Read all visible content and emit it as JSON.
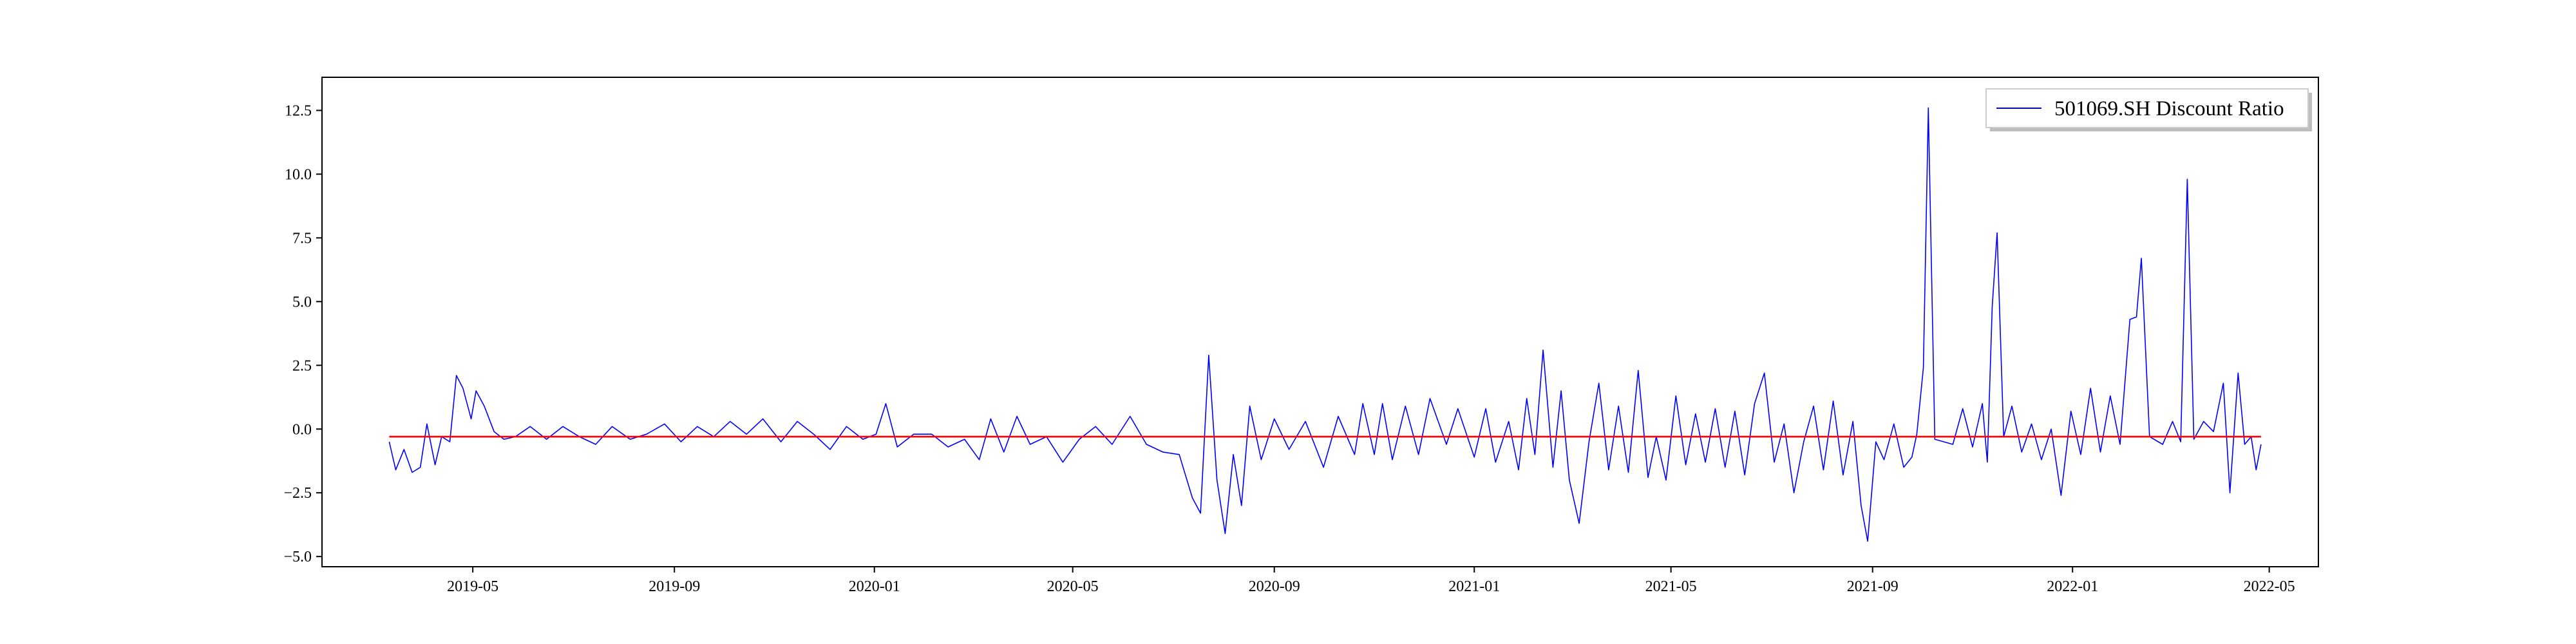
{
  "chart_data": {
    "type": "line",
    "title": "",
    "xlabel": "",
    "ylabel": "",
    "xlim": [
      "2019-01-29",
      "2022-05-31"
    ],
    "ylim": [
      -5.4,
      13.8
    ],
    "x_ticks": [
      "2019-05",
      "2019-09",
      "2020-01",
      "2020-05",
      "2020-09",
      "2021-01",
      "2021-05",
      "2021-09",
      "2022-01",
      "2022-05"
    ],
    "y_ticks": [
      "12.5",
      "10.0",
      "7.5",
      "5.0",
      "2.5",
      "0.0",
      "−2.5",
      "−5.0"
    ],
    "legend": {
      "position": "top-right",
      "entries": [
        "501069.SH Discount Ratio"
      ]
    },
    "grid": false,
    "series": [
      {
        "name": "501069.SH Discount Ratio",
        "color": "#0000ff",
        "points": [
          [
            "2019-03-11",
            -0.5
          ],
          [
            "2019-03-15",
            -1.6
          ],
          [
            "2019-03-20",
            -0.8
          ],
          [
            "2019-03-25",
            -1.7
          ],
          [
            "2019-03-30",
            -1.5
          ],
          [
            "2019-04-03",
            0.2
          ],
          [
            "2019-04-08",
            -1.4
          ],
          [
            "2019-04-12",
            -0.3
          ],
          [
            "2019-04-17",
            -0.5
          ],
          [
            "2019-04-21",
            2.1
          ],
          [
            "2019-04-25",
            1.6
          ],
          [
            "2019-04-30",
            0.4
          ],
          [
            "2019-05-03",
            1.5
          ],
          [
            "2019-05-08",
            0.9
          ],
          [
            "2019-05-14",
            -0.1
          ],
          [
            "2019-05-20",
            -0.4
          ],
          [
            "2019-05-27",
            -0.3
          ],
          [
            "2019-06-05",
            0.1
          ],
          [
            "2019-06-15",
            -0.4
          ],
          [
            "2019-06-25",
            0.1
          ],
          [
            "2019-07-05",
            -0.3
          ],
          [
            "2019-07-15",
            -0.6
          ],
          [
            "2019-07-25",
            0.1
          ],
          [
            "2019-08-05",
            -0.4
          ],
          [
            "2019-08-15",
            -0.2
          ],
          [
            "2019-08-26",
            0.2
          ],
          [
            "2019-09-05",
            -0.5
          ],
          [
            "2019-09-15",
            0.1
          ],
          [
            "2019-09-25",
            -0.3
          ],
          [
            "2019-10-05",
            0.3
          ],
          [
            "2019-10-15",
            -0.2
          ],
          [
            "2019-10-25",
            0.4
          ],
          [
            "2019-11-05",
            -0.5
          ],
          [
            "2019-11-15",
            0.3
          ],
          [
            "2019-11-25",
            -0.2
          ],
          [
            "2019-12-05",
            -0.8
          ],
          [
            "2019-12-15",
            0.1
          ],
          [
            "2019-12-25",
            -0.4
          ],
          [
            "2020-01-02",
            -0.2
          ],
          [
            "2020-01-08",
            1.0
          ],
          [
            "2020-01-15",
            -0.7
          ],
          [
            "2020-01-25",
            -0.2
          ],
          [
            "2020-02-05",
            -0.2
          ],
          [
            "2020-02-15",
            -0.7
          ],
          [
            "2020-02-25",
            -0.4
          ],
          [
            "2020-03-05",
            -1.2
          ],
          [
            "2020-03-12",
            0.4
          ],
          [
            "2020-03-20",
            -0.9
          ],
          [
            "2020-03-28",
            0.5
          ],
          [
            "2020-04-05",
            -0.6
          ],
          [
            "2020-04-15",
            -0.3
          ],
          [
            "2020-04-25",
            -1.3
          ],
          [
            "2020-05-05",
            -0.4
          ],
          [
            "2020-05-15",
            0.1
          ],
          [
            "2020-05-25",
            -0.6
          ],
          [
            "2020-06-05",
            0.5
          ],
          [
            "2020-06-15",
            -0.6
          ],
          [
            "2020-06-25",
            -0.9
          ],
          [
            "2020-07-05",
            -1.0
          ],
          [
            "2020-07-13",
            -2.7
          ],
          [
            "2020-07-18",
            -3.3
          ],
          [
            "2020-07-23",
            2.9
          ],
          [
            "2020-07-28",
            -2.0
          ],
          [
            "2020-08-02",
            -4.1
          ],
          [
            "2020-08-07",
            -1.0
          ],
          [
            "2020-08-12",
            -3.0
          ],
          [
            "2020-08-17",
            0.9
          ],
          [
            "2020-08-24",
            -1.2
          ],
          [
            "2020-09-01",
            0.4
          ],
          [
            "2020-09-10",
            -0.8
          ],
          [
            "2020-09-20",
            0.3
          ],
          [
            "2020-10-01",
            -1.5
          ],
          [
            "2020-10-10",
            0.5
          ],
          [
            "2020-10-20",
            -1.0
          ],
          [
            "2020-10-25",
            1.0
          ],
          [
            "2020-11-01",
            -1.0
          ],
          [
            "2020-11-06",
            1.0
          ],
          [
            "2020-11-12",
            -1.2
          ],
          [
            "2020-11-20",
            0.9
          ],
          [
            "2020-11-28",
            -1.0
          ],
          [
            "2020-12-05",
            1.2
          ],
          [
            "2020-12-15",
            -0.6
          ],
          [
            "2020-12-22",
            0.8
          ],
          [
            "2021-01-01",
            -1.1
          ],
          [
            "2021-01-08",
            0.8
          ],
          [
            "2021-01-14",
            -1.3
          ],
          [
            "2021-01-22",
            0.3
          ],
          [
            "2021-01-28",
            -1.6
          ],
          [
            "2021-02-02",
            1.2
          ],
          [
            "2021-02-07",
            -1.0
          ],
          [
            "2021-02-12",
            3.1
          ],
          [
            "2021-02-18",
            -1.5
          ],
          [
            "2021-02-23",
            1.5
          ],
          [
            "2021-02-28",
            -2.0
          ],
          [
            "2021-03-06",
            -3.7
          ],
          [
            "2021-03-12",
            -0.5
          ],
          [
            "2021-03-18",
            1.8
          ],
          [
            "2021-03-24",
            -1.6
          ],
          [
            "2021-03-30",
            0.9
          ],
          [
            "2021-04-05",
            -1.7
          ],
          [
            "2021-04-11",
            2.3
          ],
          [
            "2021-04-17",
            -1.9
          ],
          [
            "2021-04-22",
            -0.3
          ],
          [
            "2021-04-28",
            -2.0
          ],
          [
            "2021-05-04",
            1.3
          ],
          [
            "2021-05-10",
            -1.4
          ],
          [
            "2021-05-16",
            0.6
          ],
          [
            "2021-05-22",
            -1.3
          ],
          [
            "2021-05-28",
            0.8
          ],
          [
            "2021-06-03",
            -1.5
          ],
          [
            "2021-06-09",
            0.7
          ],
          [
            "2021-06-15",
            -1.8
          ],
          [
            "2021-06-21",
            1.0
          ],
          [
            "2021-06-27",
            2.2
          ],
          [
            "2021-07-03",
            -1.3
          ],
          [
            "2021-07-09",
            0.2
          ],
          [
            "2021-07-15",
            -2.5
          ],
          [
            "2021-07-21",
            -0.5
          ],
          [
            "2021-07-27",
            0.9
          ],
          [
            "2021-08-02",
            -1.6
          ],
          [
            "2021-08-08",
            1.1
          ],
          [
            "2021-08-14",
            -1.8
          ],
          [
            "2021-08-20",
            0.3
          ],
          [
            "2021-08-25",
            -3.0
          ],
          [
            "2021-08-29",
            -4.4
          ],
          [
            "2021-09-03",
            -0.5
          ],
          [
            "2021-09-08",
            -1.2
          ],
          [
            "2021-09-14",
            0.2
          ],
          [
            "2021-09-20",
            -1.5
          ],
          [
            "2021-09-25",
            -1.1
          ],
          [
            "2021-09-28",
            -0.2
          ],
          [
            "2021-10-02",
            2.4
          ],
          [
            "2021-10-05",
            12.6
          ],
          [
            "2021-10-09",
            -0.4
          ],
          [
            "2021-10-20",
            -0.6
          ],
          [
            "2021-10-26",
            0.8
          ],
          [
            "2021-11-01",
            -0.7
          ],
          [
            "2021-11-07",
            1.0
          ],
          [
            "2021-11-10",
            -1.3
          ],
          [
            "2021-11-13",
            4.8
          ],
          [
            "2021-11-16",
            7.7
          ],
          [
            "2021-11-20",
            -0.3
          ],
          [
            "2021-11-25",
            0.9
          ],
          [
            "2021-12-01",
            -0.9
          ],
          [
            "2021-12-07",
            0.2
          ],
          [
            "2021-12-13",
            -1.2
          ],
          [
            "2021-12-19",
            0.0
          ],
          [
            "2021-12-25",
            -2.6
          ],
          [
            "2021-12-31",
            0.7
          ],
          [
            "2022-01-06",
            -1.0
          ],
          [
            "2022-01-12",
            1.6
          ],
          [
            "2022-01-18",
            -0.9
          ],
          [
            "2022-01-24",
            1.3
          ],
          [
            "2022-01-30",
            -0.6
          ],
          [
            "2022-02-05",
            4.3
          ],
          [
            "2022-02-09",
            4.4
          ],
          [
            "2022-02-12",
            6.7
          ],
          [
            "2022-02-17",
            -0.3
          ],
          [
            "2022-02-25",
            -0.6
          ],
          [
            "2022-03-03",
            0.3
          ],
          [
            "2022-03-08",
            -0.5
          ],
          [
            "2022-03-12",
            9.8
          ],
          [
            "2022-03-16",
            -0.4
          ],
          [
            "2022-03-22",
            0.3
          ],
          [
            "2022-03-28",
            -0.1
          ],
          [
            "2022-04-03",
            1.8
          ],
          [
            "2022-04-07",
            -2.5
          ],
          [
            "2022-04-12",
            2.2
          ],
          [
            "2022-04-16",
            -0.6
          ],
          [
            "2022-04-20",
            -0.3
          ],
          [
            "2022-04-23",
            -1.6
          ],
          [
            "2022-04-26",
            -0.6
          ]
        ]
      },
      {
        "color": "#ff0000",
        "points": [
          [
            "2019-03-11",
            -0.3
          ],
          [
            "2022-04-26",
            -0.3
          ]
        ]
      }
    ]
  }
}
